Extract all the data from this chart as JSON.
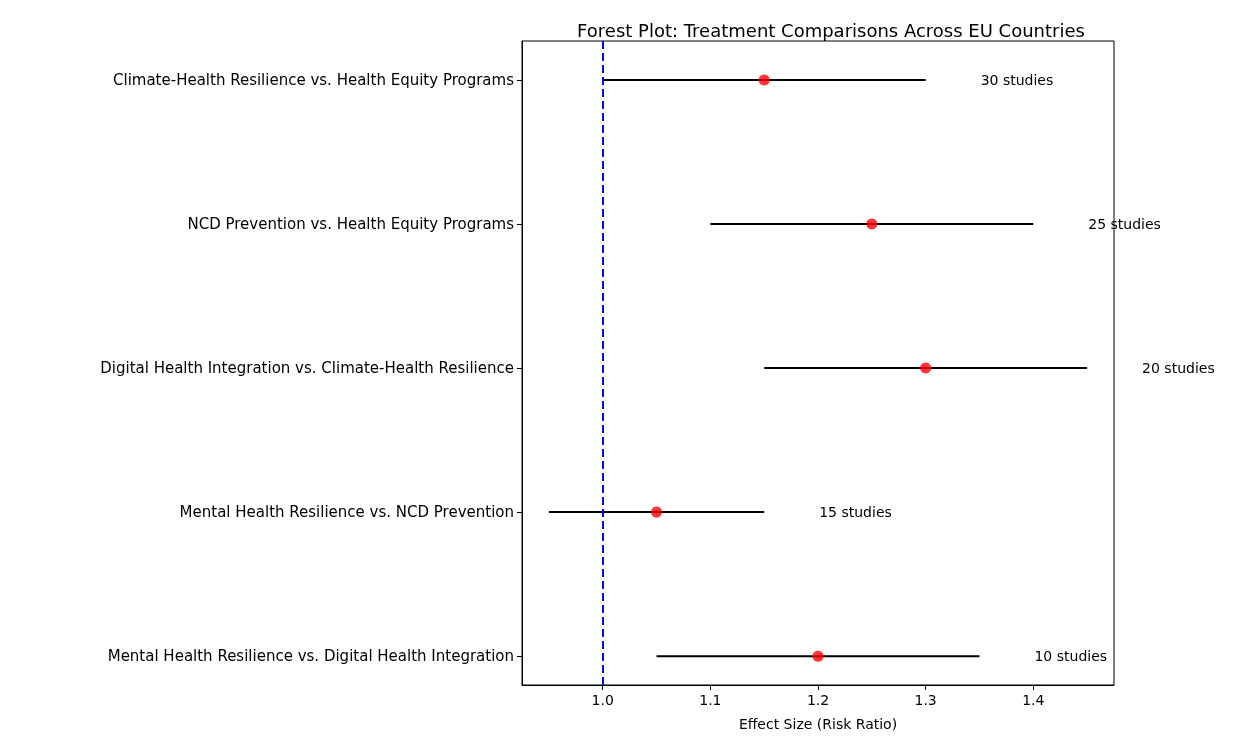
{
  "chart_data": {
    "type": "scatter",
    "orientation": "horizontal",
    "title": "Forest Plot: Treatment Comparisons Across EU Countries",
    "xlabel": "Effect Size (Risk Ratio)",
    "categories": [
      "Climate-Health Resilience vs. Health Equity Programs",
      "NCD Prevention vs. Health Equity Programs",
      "Digital Health Integration vs. Climate-Health Resilience",
      "Mental Health Resilience vs. NCD Prevention",
      "Mental Health Resilience vs. Digital Health Integration"
    ],
    "series": [
      {
        "color": "#ff0000",
        "values": [
          1.15,
          1.25,
          1.3,
          1.05,
          1.2
        ],
        "errors": [
          [
            1.0,
            1.3
          ],
          [
            1.1,
            1.4
          ],
          [
            1.15,
            1.45
          ],
          [
            0.95,
            1.15
          ],
          [
            1.05,
            1.35
          ]
        ]
      }
    ],
    "marker": "circle",
    "grid": false,
    "xlim": [
      0.925,
      1.475
    ],
    "xticks": [
      {
        "value": 1,
        "label": "1.0"
      },
      1.1,
      1.2,
      1.3,
      1.4
    ],
    "ref_lines": [
      {
        "axis": "x",
        "value": 1,
        "color": "#0000ff",
        "line_style": "dashed"
      }
    ],
    "annotations": [
      "30 studies",
      "25 studies",
      "20 studies",
      "15 studies",
      "10 studies"
    ]
  }
}
